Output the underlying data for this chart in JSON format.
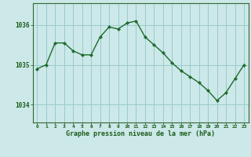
{
  "x": [
    0,
    1,
    2,
    3,
    4,
    5,
    6,
    7,
    8,
    9,
    10,
    11,
    12,
    13,
    14,
    15,
    16,
    17,
    18,
    19,
    20,
    21,
    22,
    23
  ],
  "y": [
    1034.9,
    1035.0,
    1035.55,
    1035.55,
    1035.35,
    1035.25,
    1035.25,
    1035.7,
    1035.95,
    1035.9,
    1036.05,
    1036.1,
    1035.7,
    1035.5,
    1035.3,
    1035.05,
    1034.85,
    1034.7,
    1034.55,
    1034.35,
    1034.1,
    1034.3,
    1034.65,
    1035.0
  ],
  "line_color": "#1e6b2e",
  "marker_color": "#1e6b2e",
  "bg_color": "#cce8e8",
  "grid_color": "#99cccc",
  "border_color": "#336633",
  "xlabel": "Graphe pression niveau de la mer (hPa)",
  "xlabel_color": "#1a5c1a",
  "tick_color": "#1a5c1a",
  "ytick_labels": [
    "1034",
    "1035",
    "1036"
  ],
  "ytick_values": [
    1034,
    1035,
    1036
  ],
  "ylim": [
    1033.55,
    1036.55
  ],
  "xlim": [
    -0.5,
    23.5
  ],
  "xtick_labels": [
    "0",
    "1",
    "2",
    "3",
    "4",
    "5",
    "6",
    "7",
    "8",
    "9",
    "10",
    "11",
    "12",
    "13",
    "14",
    "15",
    "16",
    "17",
    "18",
    "19",
    "20",
    "21",
    "22",
    "23"
  ]
}
